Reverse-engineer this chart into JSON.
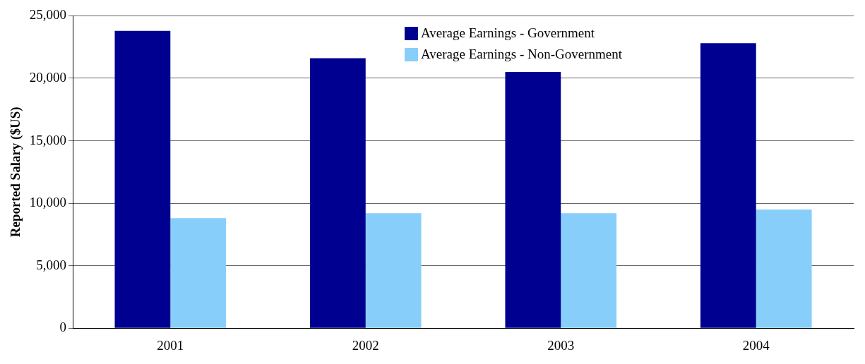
{
  "chart_data": {
    "type": "bar",
    "ylabel": "Reported Salary ($US)",
    "categories": [
      "2001",
      "2002",
      "2003",
      "2004"
    ],
    "series": [
      {
        "name": "Average Earnings - Government",
        "color": "#000090",
        "values": [
          23800,
          21600,
          20500,
          22800
        ]
      },
      {
        "name": "Average Earnings - Non-Government",
        "color": "#87cefa",
        "values": [
          8800,
          9200,
          9200,
          9500
        ]
      }
    ],
    "ylim": [
      0,
      25000
    ],
    "yticks": [
      {
        "value": 0,
        "label": "0"
      },
      {
        "value": 5000,
        "label": "5,000"
      },
      {
        "value": 10000,
        "label": "10,000"
      },
      {
        "value": 15000,
        "label": "15,000"
      },
      {
        "value": 20000,
        "label": "20,000"
      },
      {
        "value": 25000,
        "label": "25,000"
      }
    ],
    "grid": "y",
    "legend": "top"
  }
}
